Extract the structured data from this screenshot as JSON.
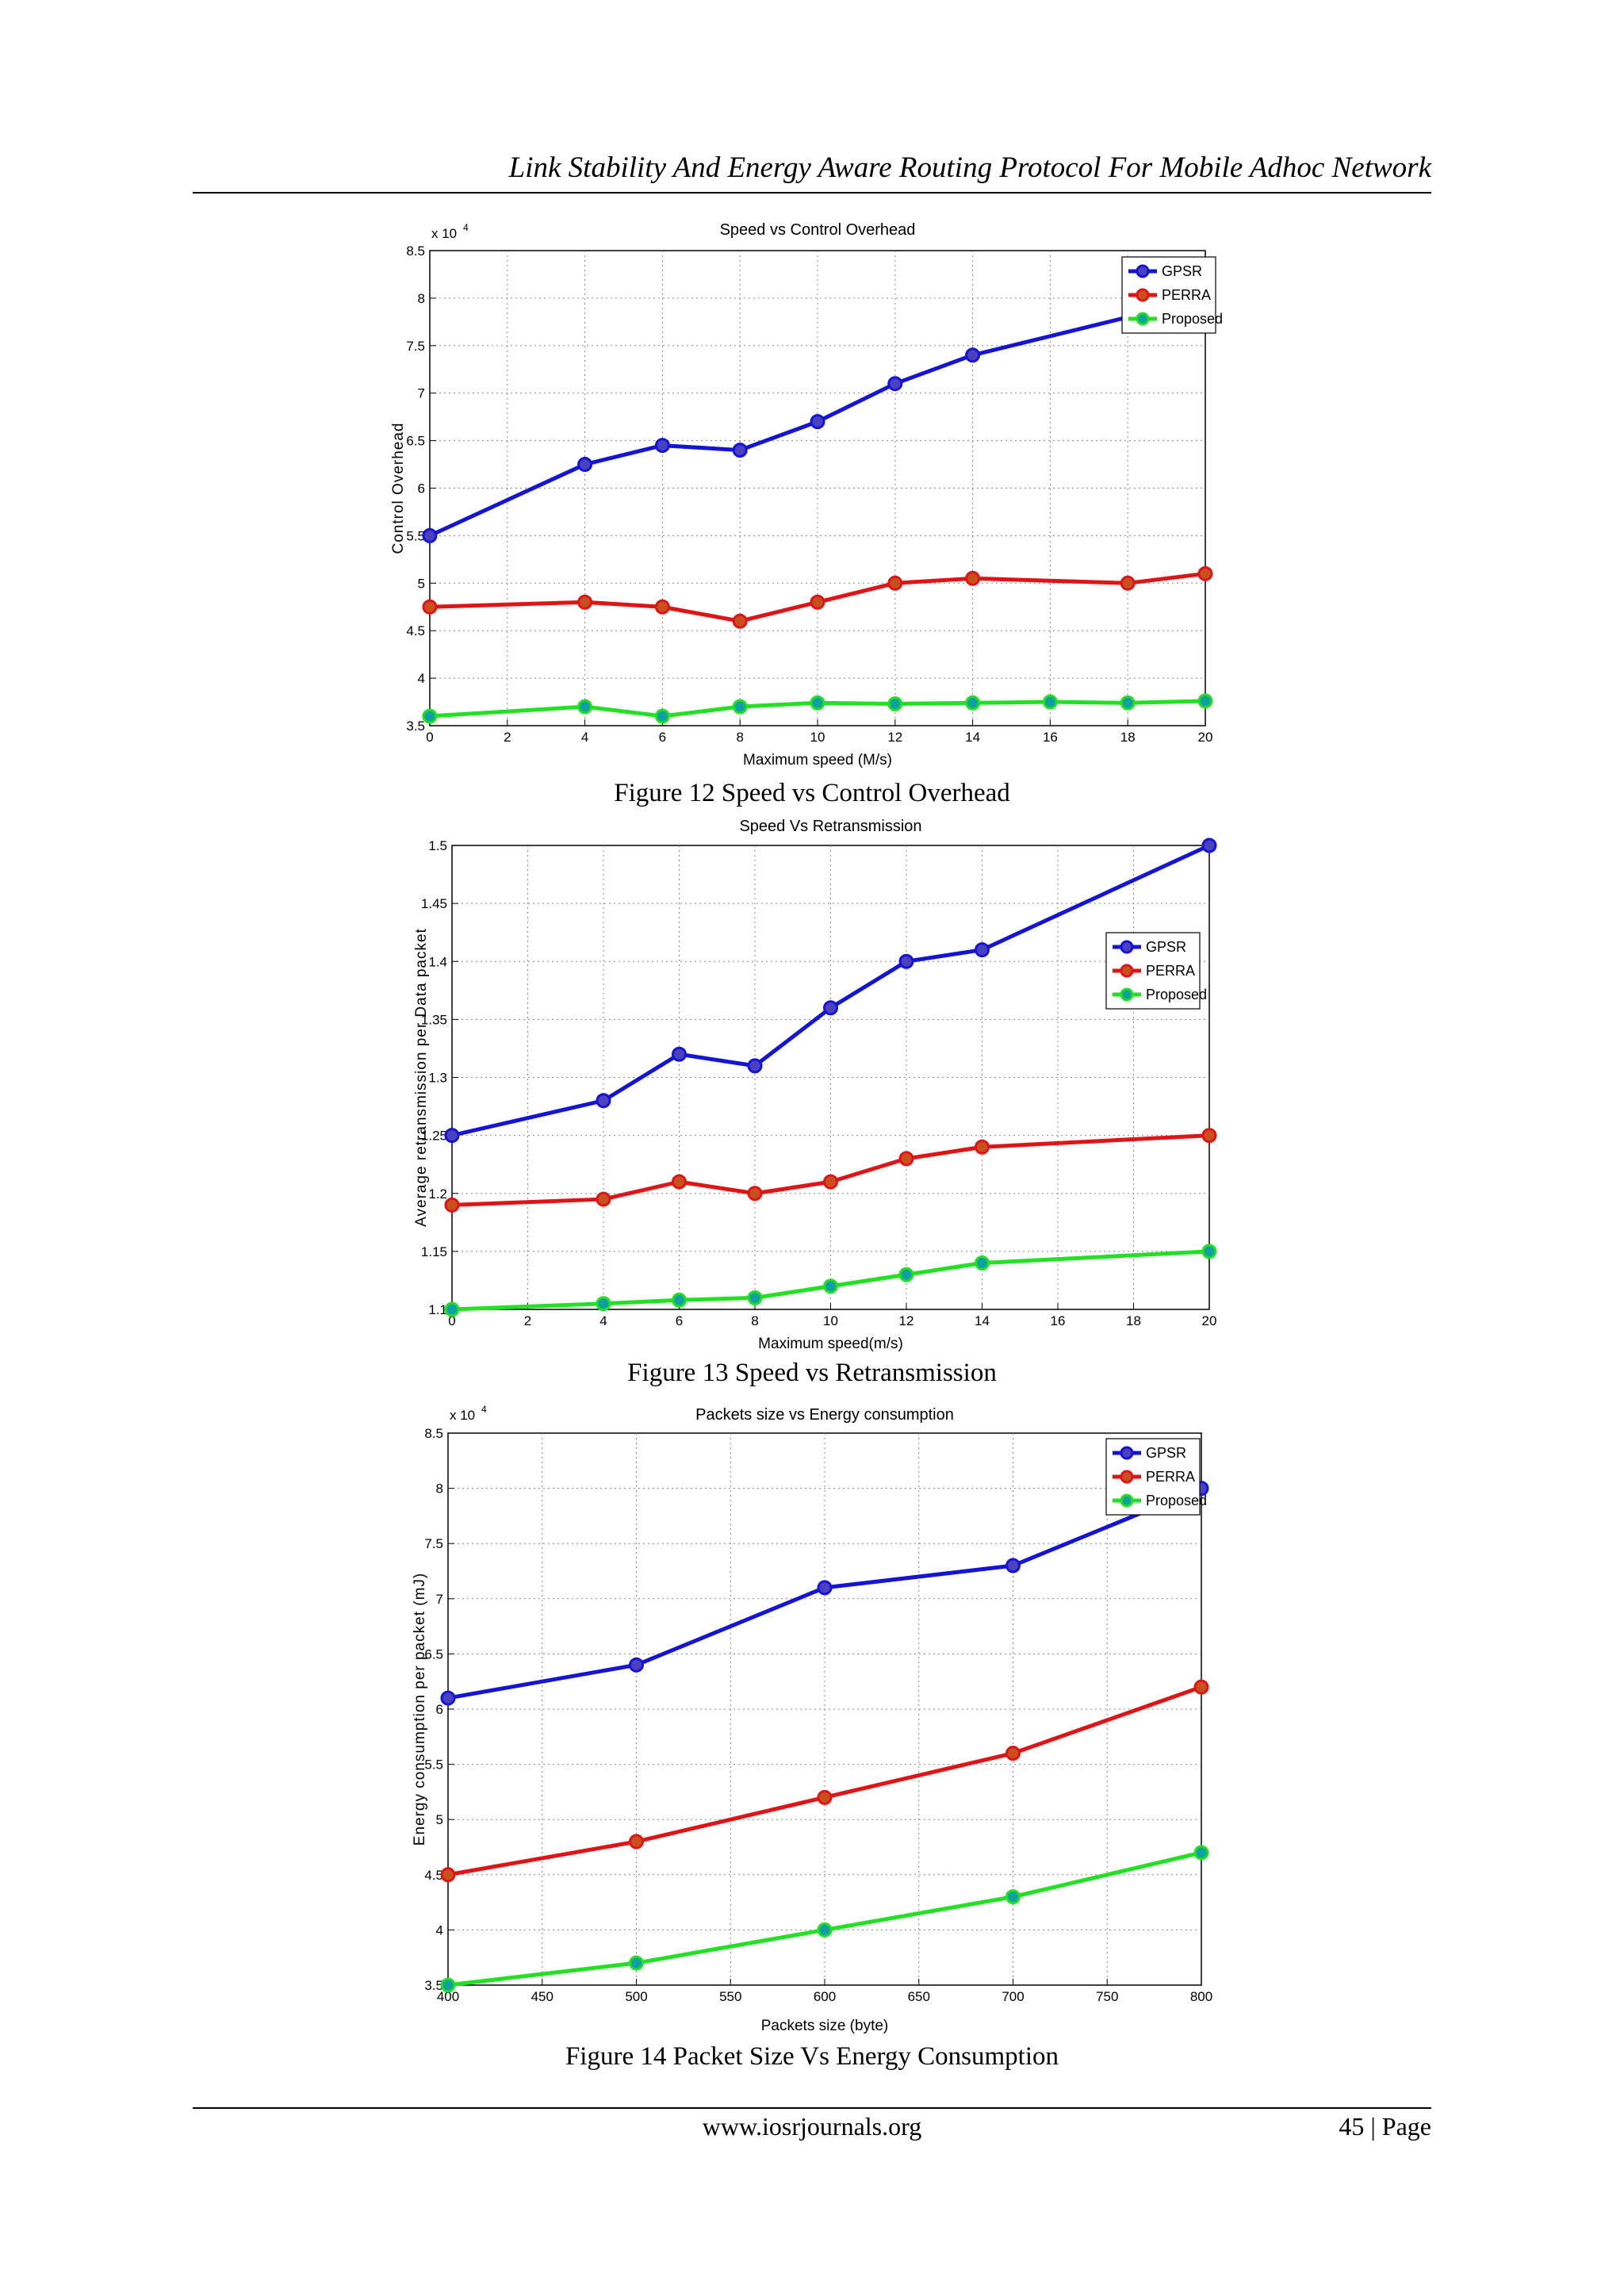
{
  "header": {
    "title": "Link Stability And Energy Aware Routing Protocol  For  Mobile Adhoc Network"
  },
  "captions": [
    "Figure 12 Speed vs Control Overhead",
    "Figure 13 Speed vs Retransmission",
    "Figure 14 Packet Size Vs Energy Consumption"
  ],
  "footer": {
    "url": "www.iosrjournals.org",
    "page": "45 | Page"
  },
  "colors": {
    "GPSR": "#1414d6",
    "PERRA": "#e01414",
    "Proposed": "#22e022"
  },
  "chart_data": [
    {
      "type": "line",
      "title": "Speed vs Control Overhead",
      "xlabel": "Maximum speed (M/s)",
      "ylabel": "Control Overhead",
      "exponent_label": "x 10",
      "exponent_power": "4",
      "xlim": [
        0,
        20
      ],
      "ylim": [
        3.5,
        8.5
      ],
      "xticks": [
        0,
        2,
        4,
        6,
        8,
        10,
        12,
        14,
        16,
        18,
        20
      ],
      "yticks": [
        3.5,
        4,
        4.5,
        5,
        5.5,
        6,
        6.5,
        7,
        7.5,
        8,
        8.5
      ],
      "grid": true,
      "legend": "top-right",
      "series": [
        {
          "name": "GPSR",
          "x": [
            0,
            4,
            6,
            8,
            10,
            12,
            14,
            20
          ],
          "values": [
            5.5,
            6.25,
            6.45,
            6.4,
            6.7,
            7.1,
            7.4,
            8.0
          ]
        },
        {
          "name": "PERRA",
          "x": [
            0,
            4,
            6,
            8,
            10,
            12,
            14,
            18,
            20
          ],
          "values": [
            4.75,
            4.8,
            4.75,
            4.6,
            4.8,
            5.0,
            5.05,
            5.0,
            5.1
          ]
        },
        {
          "name": "Proposed",
          "x": [
            0,
            4,
            6,
            8,
            10,
            12,
            14,
            16,
            18,
            20
          ],
          "values": [
            3.6,
            3.7,
            3.6,
            3.7,
            3.74,
            3.73,
            3.74,
            3.75,
            3.74,
            3.76
          ]
        }
      ]
    },
    {
      "type": "line",
      "title": "Speed Vs Retransmission",
      "xlabel": "Maximum speed(m/s)",
      "ylabel": "Average retransmission per Data packet",
      "exponent_label": "",
      "exponent_power": "",
      "xlim": [
        0,
        20
      ],
      "ylim": [
        1.1,
        1.5
      ],
      "xticks": [
        0,
        2,
        4,
        6,
        8,
        10,
        12,
        14,
        16,
        18,
        20
      ],
      "yticks": [
        1.1,
        1.15,
        1.2,
        1.25,
        1.3,
        1.35,
        1.4,
        1.45,
        1.5
      ],
      "grid": true,
      "legend": "right",
      "series": [
        {
          "name": "GPSR",
          "x": [
            0,
            4,
            6,
            8,
            10,
            12,
            14,
            20
          ],
          "values": [
            1.25,
            1.28,
            1.32,
            1.31,
            1.36,
            1.4,
            1.41,
            1.5
          ]
        },
        {
          "name": "PERRA",
          "x": [
            0,
            4,
            6,
            8,
            10,
            12,
            14,
            20
          ],
          "values": [
            1.19,
            1.195,
            1.21,
            1.2,
            1.21,
            1.23,
            1.24,
            1.25
          ]
        },
        {
          "name": "Proposed",
          "x": [
            0,
            4,
            6,
            8,
            10,
            12,
            14,
            20
          ],
          "values": [
            1.1,
            1.105,
            1.108,
            1.11,
            1.12,
            1.13,
            1.14,
            1.15
          ]
        }
      ]
    },
    {
      "type": "line",
      "title": "Packets size vs Energy consumption",
      "xlabel": "Packets size (byte)",
      "ylabel": "Energy consumption per packet (mJ)",
      "exponent_label": "x 10",
      "exponent_power": "4",
      "xlim": [
        400,
        800
      ],
      "ylim": [
        3.5,
        8.5
      ],
      "xticks": [
        400,
        450,
        500,
        550,
        600,
        650,
        700,
        750,
        800
      ],
      "yticks": [
        3.5,
        4,
        4.5,
        5,
        5.5,
        6,
        6.5,
        7,
        7.5,
        8,
        8.5
      ],
      "grid": true,
      "legend": "top-right",
      "series": [
        {
          "name": "GPSR",
          "x": [
            400,
            500,
            600,
            700,
            800
          ],
          "values": [
            6.1,
            6.4,
            7.1,
            7.3,
            8.0
          ]
        },
        {
          "name": "PERRA",
          "x": [
            400,
            500,
            600,
            700,
            800
          ],
          "values": [
            4.5,
            4.8,
            5.2,
            5.6,
            6.2
          ]
        },
        {
          "name": "Proposed",
          "x": [
            400,
            500,
            600,
            700,
            800
          ],
          "values": [
            3.5,
            3.7,
            4.0,
            4.3,
            4.7
          ]
        }
      ]
    }
  ]
}
